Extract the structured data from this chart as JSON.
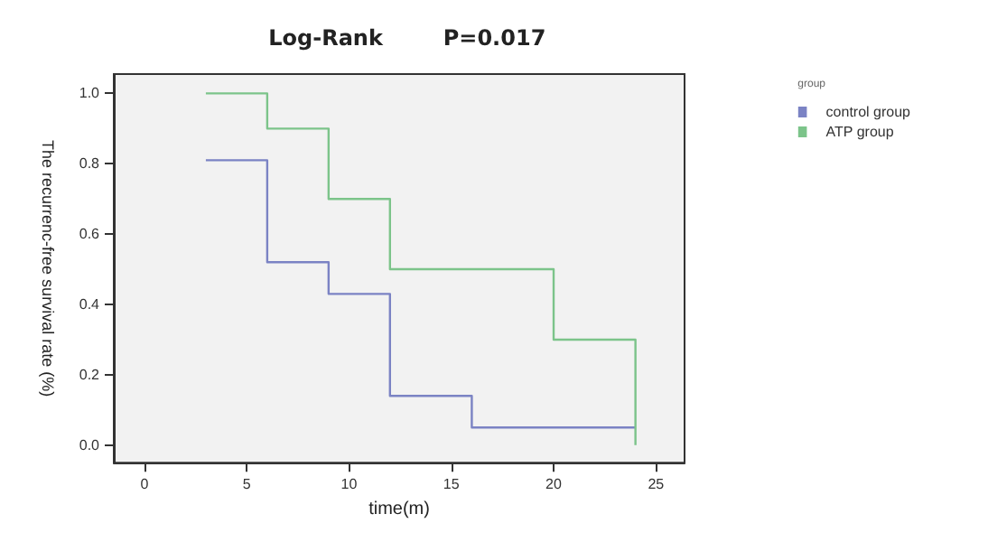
{
  "chart_data": {
    "type": "step",
    "title": "Log-Rank        P=0.017",
    "xlabel": "time(m)",
    "ylabel": "The recurrenc-free survival rate (%)",
    "legend_title": "group",
    "legend": "top right",
    "grid": false,
    "marker": "none",
    "line_style": "solid",
    "xlim": [
      -1.5,
      26.4
    ],
    "xticks": [
      0,
      5,
      10,
      15,
      20,
      25
    ],
    "ylim": [
      -0.05,
      1.055
    ],
    "yticks": [
      {
        "value": 0,
        "label": "0.0"
      },
      {
        "value": 0.2,
        "label": "0.2"
      },
      {
        "value": 0.4,
        "label": "0.4"
      },
      {
        "value": 0.6,
        "label": "0.6"
      },
      {
        "value": 0.8,
        "label": "0.8"
      },
      {
        "value": 1,
        "label": "1.0"
      }
    ],
    "series": [
      {
        "name": "control group",
        "color": "#7b83c4",
        "x": [
          3,
          6,
          9,
          12,
          16,
          24
        ],
        "values": [
          0.81,
          0.52,
          0.43,
          0.14,
          0.05,
          0.05
        ]
      },
      {
        "name": "ATP group",
        "color": "#7cc48a",
        "x": [
          3,
          6,
          9,
          12,
          20,
          24
        ],
        "values": [
          1.0,
          0.9,
          0.7,
          0.5,
          0.3,
          0.0
        ]
      }
    ]
  }
}
